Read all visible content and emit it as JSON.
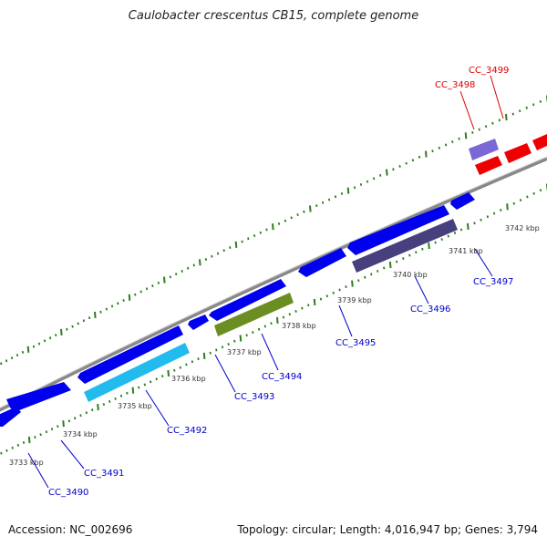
{
  "title": "Caulobacter crescentus CB15, complete genome",
  "footer": {
    "accession": "Accession: NC_002696",
    "summary": "Topology: circular; Length: 4,016,947 bp; Genes: 3,794"
  },
  "colors": {
    "backbone": "#8c8c8c",
    "tick": "#2e7d1e",
    "forward_gene": "#0000ee",
    "reverse_cyan": "#22bbee",
    "reverse_olive": "#6b8e23",
    "reverse_slate": "#46407e",
    "forward_lavender": "#7b68d6",
    "red_gene": "#ee0000",
    "label_blue": "#0000cc",
    "label_red": "#dd0000"
  },
  "kbp_labels": [
    "3733 kbp",
    "3734 kbp",
    "3735 kbp",
    "3736 kbp",
    "3737 kbp",
    "3738 kbp",
    "3739 kbp",
    "3740 kbp",
    "3741 kbp",
    "3742 kbp"
  ],
  "gene_labels": [
    "CC_3490",
    "CC_3491",
    "CC_3492",
    "CC_3493",
    "CC_3494",
    "CC_3495",
    "CC_3496",
    "CC_3497",
    "CC_3498",
    "CC_3499"
  ]
}
